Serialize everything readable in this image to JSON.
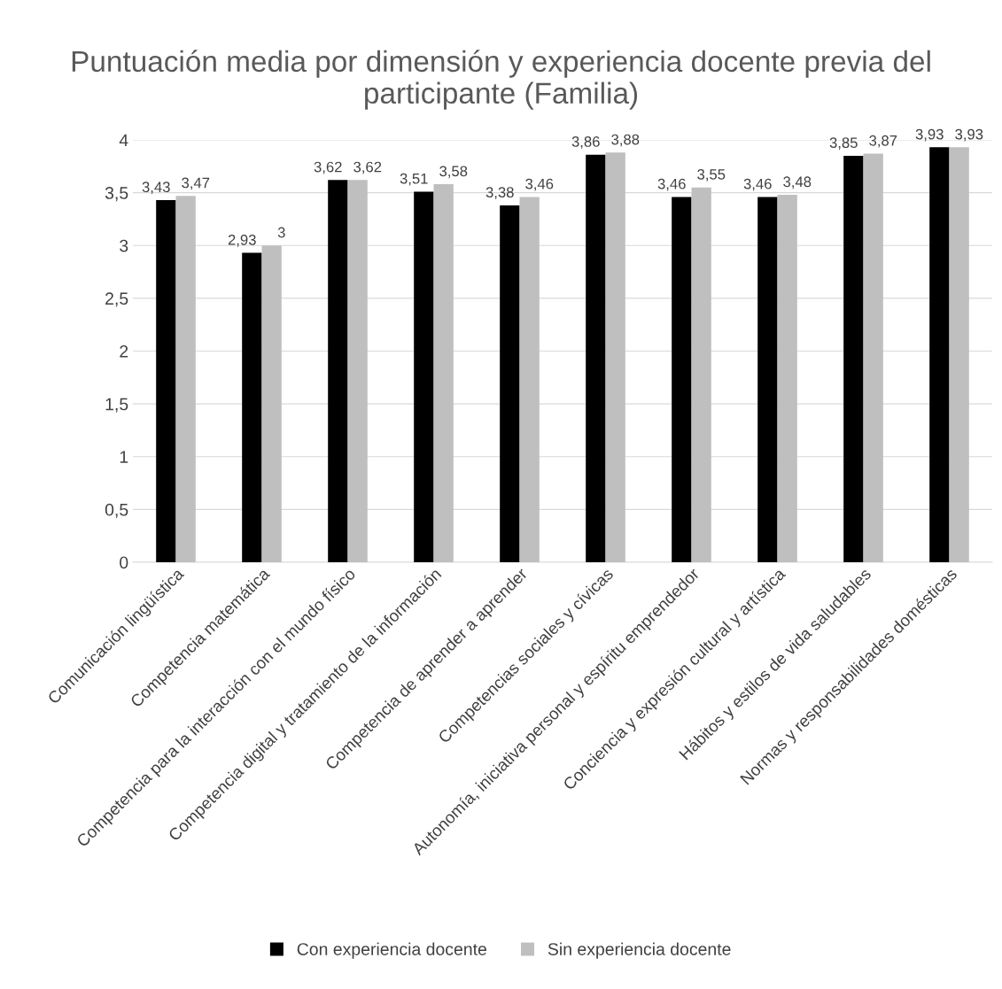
{
  "chart_data": {
    "type": "bar",
    "title": "Puntuación media por dimensión y experiencia docente previa del participante (Familia)",
    "categories": [
      "Comunicación lingüística",
      "Competencia matemática",
      "Competencia para la interacción con el mundo físico",
      "Competencia digital y tratamiento de la información",
      "Competencia de aprender a aprender",
      "Competencias sociales y cívicas",
      "Autonomía, iniciativa personal y espíritu emprendedor",
      "Conciencia y expresión cultural y artística",
      "Hábitos y estilos de vida saludables",
      "Normas y responsabilidades domésticas"
    ],
    "series": [
      {
        "name": "Con experiencia docente",
        "color": "#000000",
        "values": [
          3.43,
          2.93,
          3.62,
          3.51,
          3.38,
          3.86,
          3.46,
          3.46,
          3.85,
          3.93
        ],
        "value_labels": [
          "3,43",
          "2,93",
          "3,62",
          "3,51",
          "3,38",
          "3,86",
          "3,46",
          "3,46",
          "3,85",
          "3,93"
        ]
      },
      {
        "name": "Sin experiencia docente",
        "color": "#bfbfbf",
        "values": [
          3.47,
          3.0,
          3.62,
          3.58,
          3.46,
          3.88,
          3.55,
          3.48,
          3.87,
          3.93
        ],
        "value_labels": [
          "3,47",
          "3",
          "3,62",
          "3,58",
          "3,46",
          "3,88",
          "3,55",
          "3,48",
          "3,87",
          "3,93"
        ]
      }
    ],
    "ylim": [
      0,
      4
    ],
    "yticks": [
      0,
      {
        "value": 0.5,
        "label": "0,5"
      },
      1,
      {
        "value": 1.5,
        "label": "1,5"
      },
      2,
      {
        "value": 2.5,
        "label": "2,5"
      },
      3,
      {
        "value": 3.5,
        "label": "3,5"
      },
      4
    ],
    "grid": "y",
    "legend": "bottom"
  }
}
